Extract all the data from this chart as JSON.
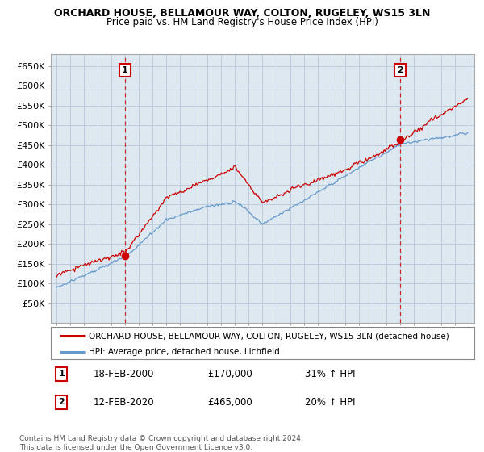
{
  "title": "ORCHARD HOUSE, BELLAMOUR WAY, COLTON, RUGELEY, WS15 3LN",
  "subtitle": "Price paid vs. HM Land Registry's House Price Index (HPI)",
  "red_label": "ORCHARD HOUSE, BELLAMOUR WAY, COLTON, RUGELEY, WS15 3LN (detached house)",
  "blue_label": "HPI: Average price, detached house, Lichfield",
  "annotation1": {
    "num": "1",
    "date": "18-FEB-2000",
    "price": "£170,000",
    "pct": "31% ↑ HPI"
  },
  "annotation2": {
    "num": "2",
    "date": "12-FEB-2020",
    "price": "£465,000",
    "pct": "20% ↑ HPI"
  },
  "footer": "Contains HM Land Registry data © Crown copyright and database right 2024.\nThis data is licensed under the Open Government Licence v3.0.",
  "ylim": [
    0,
    680000
  ],
  "yticks": [
    50000,
    100000,
    150000,
    200000,
    250000,
    300000,
    350000,
    400000,
    450000,
    500000,
    550000,
    600000,
    650000
  ],
  "red_color": "#cc0000",
  "blue_color": "#6699cc",
  "grid_color": "#bbccdd",
  "plot_bg_color": "#dde8f0",
  "bg_color": "#ffffff",
  "annotation_color": "#cc0000",
  "sale1_year": 2000.12,
  "sale2_year": 2020.12
}
